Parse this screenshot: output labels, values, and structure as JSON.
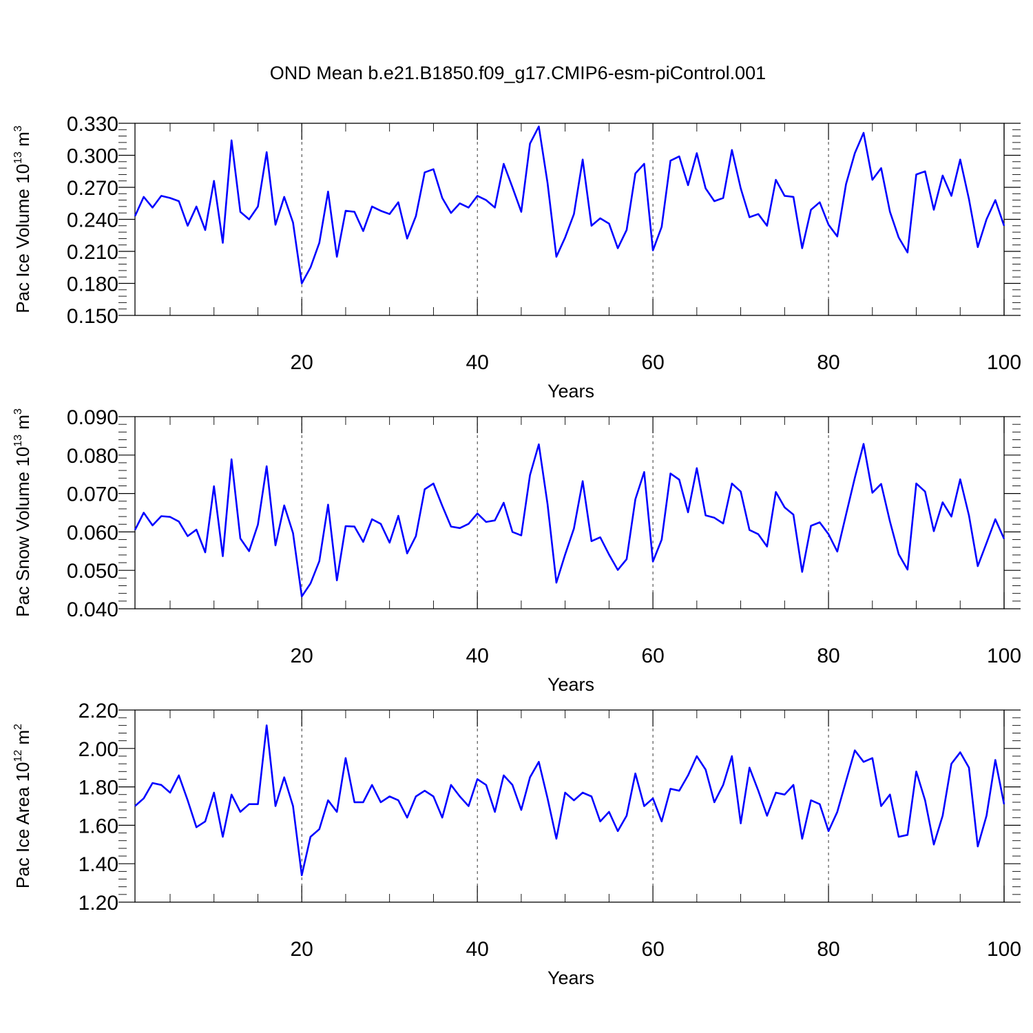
{
  "title": "OND Mean b.e21.B1850.f09_g17.CMIP6-esm-piControl.001",
  "line_color": "#0000ff",
  "chart_data": [
    {
      "type": "line",
      "xlabel": "Years",
      "ylabel_text": "Pac Ice Volume 10",
      "ylabel_exp": "13",
      "ylabel_unit": " m",
      "ylabel_unit_exp": "3",
      "xlim": [
        1,
        100
      ],
      "ylim": [
        0.15,
        0.33
      ],
      "xticks": [
        20,
        40,
        60,
        80,
        100
      ],
      "xtick_labels": [
        "20",
        "40",
        "60",
        "80",
        "100"
      ],
      "yticks": [
        0.15,
        0.18,
        0.21,
        0.24,
        0.27,
        0.3,
        0.33
      ],
      "ytick_labels": [
        "0.150",
        "0.180",
        "0.210",
        "0.240",
        "0.270",
        "0.300",
        "0.330"
      ],
      "grid_x": [
        20,
        40,
        60,
        80
      ],
      "x": [
        1,
        2,
        3,
        4,
        5,
        6,
        7,
        8,
        9,
        10,
        11,
        12,
        13,
        14,
        15,
        16,
        17,
        18,
        19,
        20,
        21,
        22,
        23,
        24,
        25,
        26,
        27,
        28,
        29,
        30,
        31,
        32,
        33,
        34,
        35,
        36,
        37,
        38,
        39,
        40,
        41,
        42,
        43,
        44,
        45,
        46,
        47,
        48,
        49,
        50,
        51,
        52,
        53,
        54,
        55,
        56,
        57,
        58,
        59,
        60,
        61,
        62,
        63,
        64,
        65,
        66,
        67,
        68,
        69,
        70,
        71,
        72,
        73,
        74,
        75,
        76,
        77,
        78,
        79,
        80,
        81,
        82,
        83,
        84,
        85,
        86,
        87,
        88,
        89,
        90,
        91,
        92,
        93,
        94,
        95,
        96,
        97,
        98,
        99,
        100
      ],
      "values": [
        0.243,
        0.261,
        0.251,
        0.262,
        0.26,
        0.257,
        0.234,
        0.252,
        0.23,
        0.276,
        0.218,
        0.314,
        0.247,
        0.24,
        0.252,
        0.303,
        0.235,
        0.261,
        0.237,
        0.18,
        0.195,
        0.218,
        0.266,
        0.205,
        0.248,
        0.247,
        0.229,
        0.252,
        0.248,
        0.245,
        0.256,
        0.222,
        0.243,
        0.284,
        0.287,
        0.26,
        0.246,
        0.255,
        0.251,
        0.262,
        0.258,
        0.251,
        0.292,
        0.27,
        0.247,
        0.311,
        0.327,
        0.274,
        0.205,
        0.223,
        0.245,
        0.296,
        0.234,
        0.241,
        0.236,
        0.213,
        0.23,
        0.283,
        0.292,
        0.211,
        0.233,
        0.295,
        0.299,
        0.272,
        0.302,
        0.269,
        0.257,
        0.26,
        0.305,
        0.269,
        0.242,
        0.245,
        0.234,
        0.277,
        0.262,
        0.261,
        0.213,
        0.249,
        0.256,
        0.235,
        0.224,
        0.273,
        0.302,
        0.321,
        0.277,
        0.288,
        0.247,
        0.223,
        0.209,
        0.282,
        0.285,
        0.249,
        0.281,
        0.262,
        0.296,
        0.259,
        0.214,
        0.24,
        0.258,
        0.234
      ]
    },
    {
      "type": "line",
      "xlabel": "Years",
      "ylabel_text": "Pac Snow Volume 10",
      "ylabel_exp": "13",
      "ylabel_unit": " m",
      "ylabel_unit_exp": "3",
      "xlim": [
        1,
        100
      ],
      "ylim": [
        0.04,
        0.09
      ],
      "xticks": [
        20,
        40,
        60,
        80,
        100
      ],
      "xtick_labels": [
        "20",
        "40",
        "60",
        "80",
        "100"
      ],
      "yticks": [
        0.04,
        0.05,
        0.06,
        0.07,
        0.08,
        0.09
      ],
      "ytick_labels": [
        "0.040",
        "0.050",
        "0.060",
        "0.070",
        "0.080",
        "0.090"
      ],
      "grid_x": [
        20,
        40,
        60,
        80
      ],
      "x": [
        1,
        2,
        3,
        4,
        5,
        6,
        7,
        8,
        9,
        10,
        11,
        12,
        13,
        14,
        15,
        16,
        17,
        18,
        19,
        20,
        21,
        22,
        23,
        24,
        25,
        26,
        27,
        28,
        29,
        30,
        31,
        32,
        33,
        34,
        35,
        36,
        37,
        38,
        39,
        40,
        41,
        42,
        43,
        44,
        45,
        46,
        47,
        48,
        49,
        50,
        51,
        52,
        53,
        54,
        55,
        56,
        57,
        58,
        59,
        60,
        61,
        62,
        63,
        64,
        65,
        66,
        67,
        68,
        69,
        70,
        71,
        72,
        73,
        74,
        75,
        76,
        77,
        78,
        79,
        80,
        81,
        82,
        83,
        84,
        85,
        86,
        87,
        88,
        89,
        90,
        91,
        92,
        93,
        94,
        95,
        96,
        97,
        98,
        99,
        100
      ],
      "values": [
        0.0605,
        0.065,
        0.0617,
        0.0641,
        0.0639,
        0.0627,
        0.0589,
        0.0606,
        0.0547,
        0.0719,
        0.0537,
        0.0789,
        0.0583,
        0.055,
        0.0619,
        0.0771,
        0.0565,
        0.0669,
        0.0597,
        0.0432,
        0.0466,
        0.0524,
        0.0671,
        0.0474,
        0.0615,
        0.0614,
        0.0574,
        0.0633,
        0.0621,
        0.0572,
        0.0642,
        0.0544,
        0.0589,
        0.0711,
        0.0726,
        0.0668,
        0.0614,
        0.061,
        0.0621,
        0.0648,
        0.0626,
        0.063,
        0.0676,
        0.06,
        0.0591,
        0.0748,
        0.0828,
        0.0672,
        0.0468,
        0.0541,
        0.0609,
        0.0732,
        0.0576,
        0.0586,
        0.0541,
        0.0501,
        0.0529,
        0.0685,
        0.0756,
        0.0523,
        0.058,
        0.0752,
        0.0736,
        0.0651,
        0.0766,
        0.0643,
        0.0637,
        0.0622,
        0.0726,
        0.0705,
        0.0605,
        0.0594,
        0.0562,
        0.0704,
        0.0664,
        0.0645,
        0.0496,
        0.0616,
        0.0625,
        0.0594,
        0.0549,
        0.0645,
        0.0741,
        0.0829,
        0.0702,
        0.0725,
        0.0627,
        0.0542,
        0.0502,
        0.0726,
        0.0705,
        0.0602,
        0.0677,
        0.064,
        0.0737,
        0.0643,
        0.0511,
        0.0571,
        0.0633,
        0.0582
      ]
    },
    {
      "type": "line",
      "xlabel": "Years",
      "ylabel_text": "Pac Ice Area 10",
      "ylabel_exp": "12",
      "ylabel_unit": " m",
      "ylabel_unit_exp": "2",
      "xlim": [
        1,
        100
      ],
      "ylim": [
        1.2,
        2.2
      ],
      "xticks": [
        20,
        40,
        60,
        80,
        100
      ],
      "xtick_labels": [
        "20",
        "40",
        "60",
        "80",
        "100"
      ],
      "yticks": [
        1.2,
        1.4,
        1.6,
        1.8,
        2.0,
        2.2
      ],
      "ytick_labels": [
        "1.20",
        "1.40",
        "1.60",
        "1.80",
        "2.00",
        "2.20"
      ],
      "grid_x": [
        20,
        40,
        60,
        80
      ],
      "x": [
        1,
        2,
        3,
        4,
        5,
        6,
        7,
        8,
        9,
        10,
        11,
        12,
        13,
        14,
        15,
        16,
        17,
        18,
        19,
        20,
        21,
        22,
        23,
        24,
        25,
        26,
        27,
        28,
        29,
        30,
        31,
        32,
        33,
        34,
        35,
        36,
        37,
        38,
        39,
        40,
        41,
        42,
        43,
        44,
        45,
        46,
        47,
        48,
        49,
        50,
        51,
        52,
        53,
        54,
        55,
        56,
        57,
        58,
        59,
        60,
        61,
        62,
        63,
        64,
        65,
        66,
        67,
        68,
        69,
        70,
        71,
        72,
        73,
        74,
        75,
        76,
        77,
        78,
        79,
        80,
        81,
        82,
        83,
        84,
        85,
        86,
        87,
        88,
        89,
        90,
        91,
        92,
        93,
        94,
        95,
        96,
        97,
        98,
        99,
        100
      ],
      "values": [
        1.7,
        1.74,
        1.82,
        1.81,
        1.77,
        1.86,
        1.73,
        1.59,
        1.62,
        1.77,
        1.54,
        1.76,
        1.67,
        1.71,
        1.71,
        2.12,
        1.7,
        1.85,
        1.7,
        1.34,
        1.54,
        1.58,
        1.73,
        1.67,
        1.95,
        1.72,
        1.72,
        1.81,
        1.72,
        1.75,
        1.73,
        1.64,
        1.75,
        1.78,
        1.75,
        1.64,
        1.81,
        1.75,
        1.7,
        1.84,
        1.81,
        1.67,
        1.86,
        1.81,
        1.68,
        1.85,
        1.93,
        1.74,
        1.53,
        1.77,
        1.73,
        1.77,
        1.75,
        1.62,
        1.67,
        1.57,
        1.65,
        1.87,
        1.7,
        1.74,
        1.62,
        1.79,
        1.78,
        1.86,
        1.96,
        1.89,
        1.72,
        1.81,
        1.96,
        1.61,
        1.9,
        1.78,
        1.65,
        1.77,
        1.76,
        1.81,
        1.53,
        1.73,
        1.71,
        1.57,
        1.67,
        1.83,
        1.99,
        1.93,
        1.95,
        1.7,
        1.76,
        1.54,
        1.55,
        1.88,
        1.73,
        1.5,
        1.65,
        1.92,
        1.98,
        1.9,
        1.49,
        1.65,
        1.94,
        1.71
      ]
    }
  ]
}
